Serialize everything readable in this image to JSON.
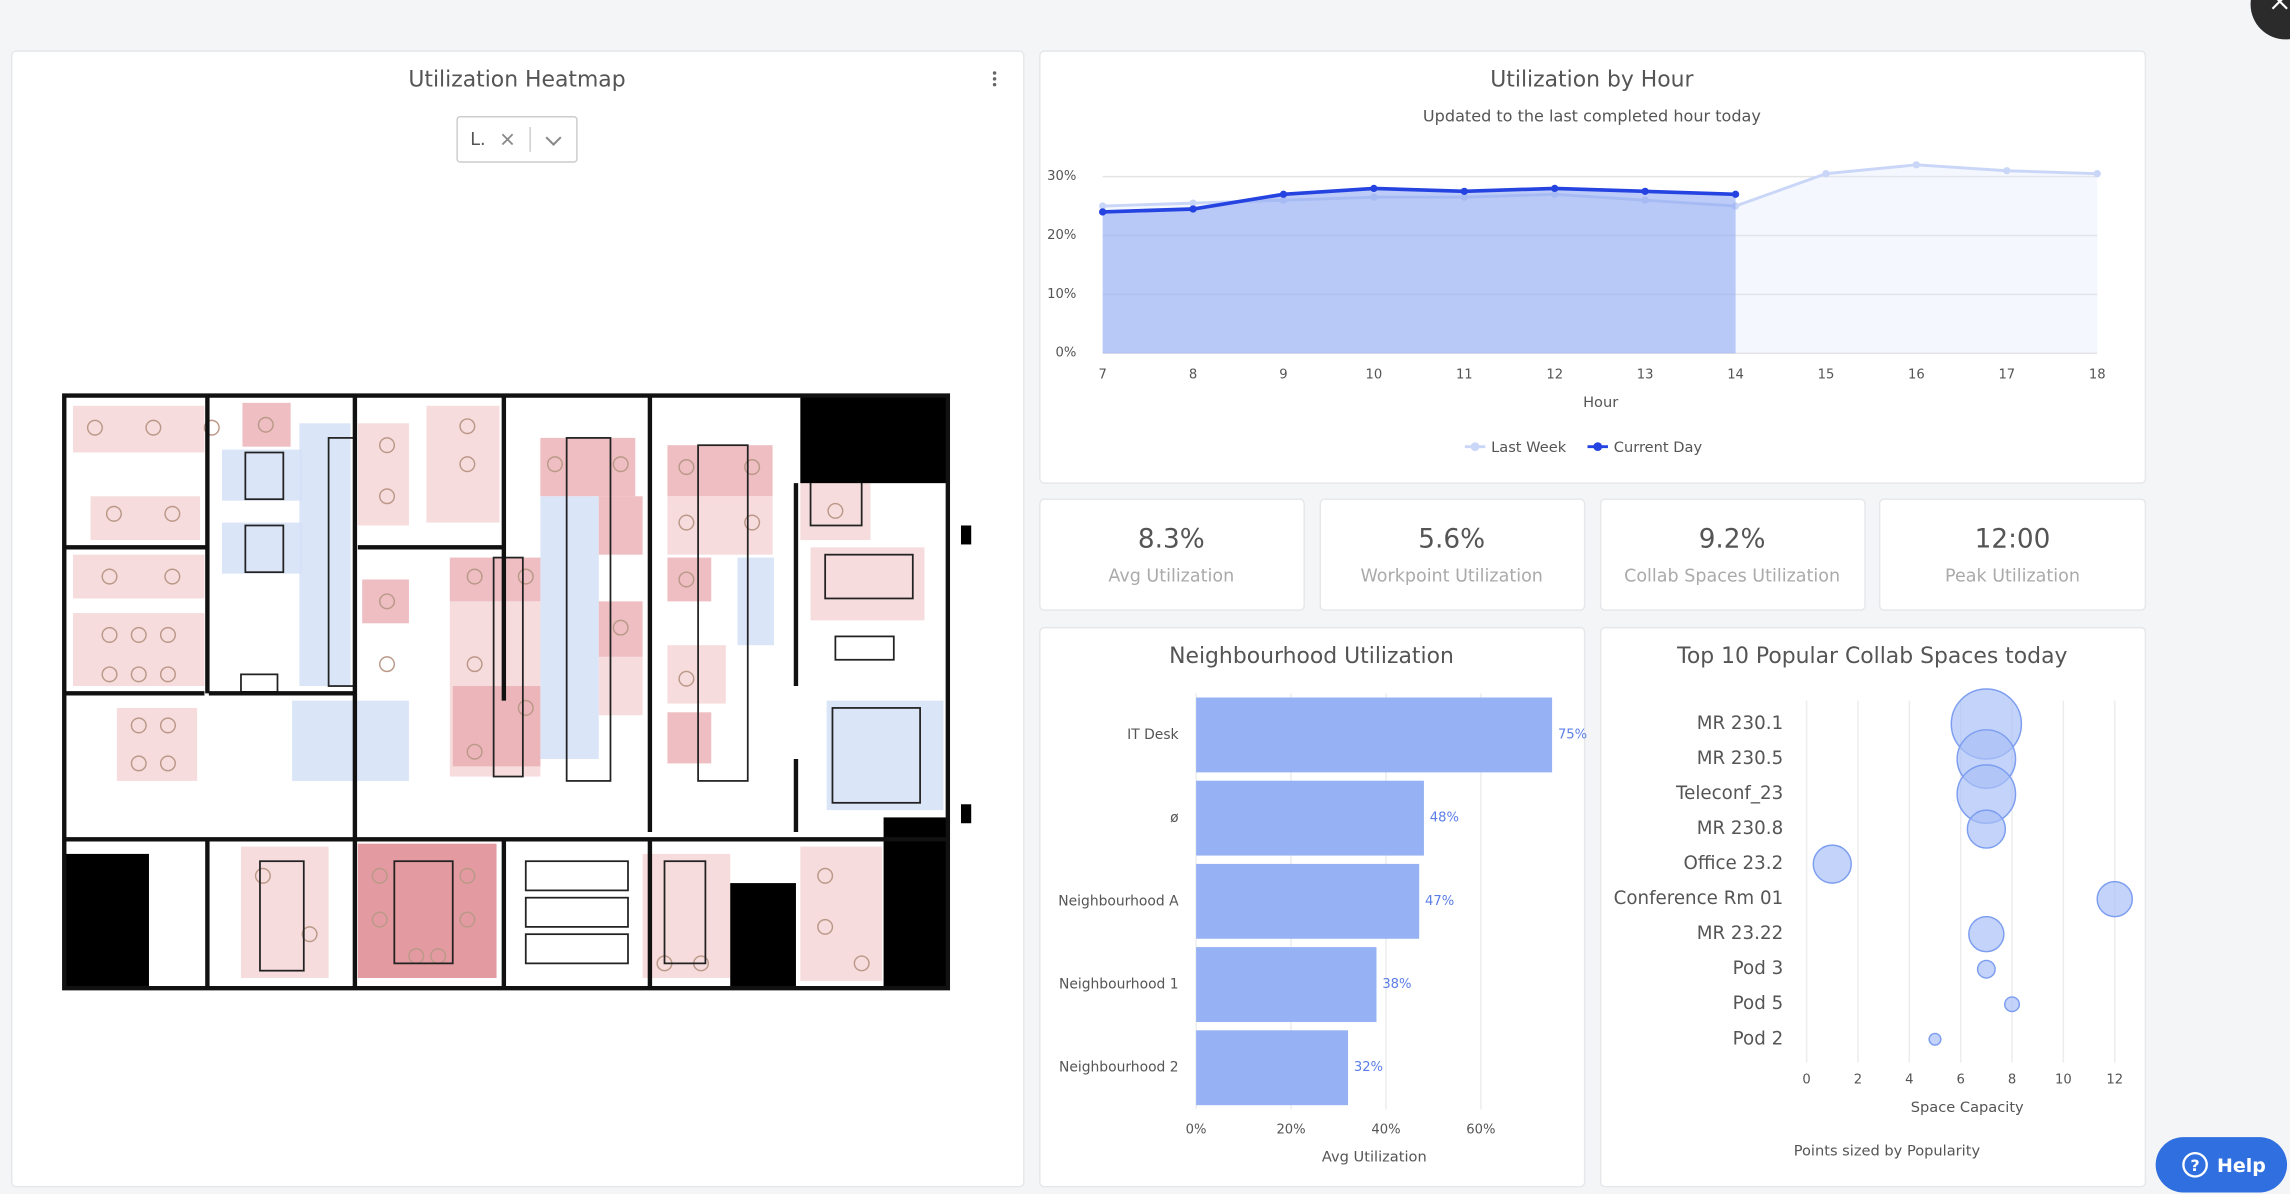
{
  "heatmap": {
    "title": "Utilization Heatmap",
    "filter": "L."
  },
  "hourly": {
    "type": "line",
    "title": "Utilization by Hour",
    "subtitle": "Updated to the last completed hour today",
    "x_label": "Hour",
    "x": [
      7,
      8,
      9,
      10,
      11,
      12,
      13,
      14,
      15,
      16,
      17,
      18
    ],
    "xlim": [
      7,
      18
    ],
    "ylim": [
      0,
      30
    ],
    "yticks": [
      {
        "value": 0,
        "label": "0%"
      },
      {
        "value": 10,
        "label": "10%"
      },
      {
        "value": 20,
        "label": "20%"
      },
      {
        "value": 30,
        "label": "30%"
      }
    ],
    "grid": true,
    "series": [
      {
        "name": "Last Week",
        "color": "#c9d6f7",
        "values": [
          25,
          25.5,
          26,
          26.5,
          26.5,
          27,
          26,
          25,
          30.5,
          32,
          31,
          30.5
        ]
      },
      {
        "name": "Current Day",
        "color": "#2443e0",
        "values": [
          24,
          24.5,
          27,
          28,
          27.5,
          28,
          27.5,
          27,
          null,
          null,
          null,
          null
        ]
      }
    ]
  },
  "kpis": [
    {
      "value": "8.3%",
      "label": "Avg Utilization"
    },
    {
      "value": "5.6%",
      "label": "Workpoint Utilization"
    },
    {
      "value": "9.2%",
      "label": "Collab Spaces Utilization"
    },
    {
      "value": "12:00",
      "label": "Peak Utilization"
    }
  ],
  "neighbourhood": {
    "type": "bar",
    "orientation": "horizontal",
    "title": "Neighbourhood Utilization",
    "x_label": "Avg Utilization",
    "categories": [
      "IT Desk",
      "ø",
      "Neighbourhood A",
      "Neighbourhood 1",
      "Neighbourhood 2"
    ],
    "values": [
      75,
      48,
      47,
      38,
      32
    ],
    "value_labels": [
      "75%",
      "48%",
      "47%",
      "38%",
      "32%"
    ],
    "color": "#97b2f4",
    "xlim": [
      0,
      80
    ],
    "xticks": [
      {
        "value": 0,
        "label": "0%"
      },
      {
        "value": 20,
        "label": "20%"
      },
      {
        "value": 40,
        "label": "40%"
      },
      {
        "value": 60,
        "label": "60%"
      }
    ],
    "grid": true
  },
  "collab": {
    "type": "scatter",
    "title": "Top 10 Popular Collab Spaces today",
    "x_label": "Space Capacity",
    "note": "Points sized by Popularity",
    "categories": [
      "MR 230.1",
      "MR 230.5",
      "Teleconf_23",
      "MR 230.8",
      "Office 23.2",
      "Conference Rm 01",
      "MR 23.22",
      "Pod 3",
      "Pod 5",
      "Pod 2"
    ],
    "values": [
      7,
      7,
      7,
      7,
      1,
      12,
      7,
      7,
      8,
      5
    ],
    "sizes": [
      24,
      20,
      20,
      13,
      13,
      12,
      12,
      6,
      5,
      4
    ],
    "color": "#a9c0f6",
    "xlim": [
      0,
      12
    ],
    "xticks": [
      0,
      2,
      4,
      6,
      8,
      10,
      12
    ],
    "grid": true
  },
  "help": "Help"
}
